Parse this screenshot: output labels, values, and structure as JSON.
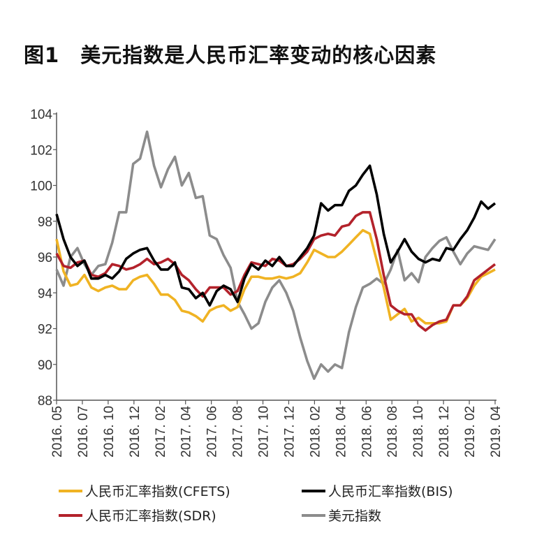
{
  "title": {
    "figure_no": "图1",
    "text": "美元指数是人民币汇率变动的核心因素"
  },
  "chart_data": {
    "type": "line",
    "title": "美元指数是人民币汇率变动的核心因素",
    "xlabel": "",
    "ylabel": "",
    "ylim": [
      88,
      104
    ],
    "yticks": [
      88,
      90,
      92,
      94,
      96,
      98,
      100,
      102,
      104
    ],
    "x_tick_labels": [
      "2016. 05",
      "2016. 07",
      "2016. 10",
      "2016. 12",
      "2017. 02",
      "2017. 04",
      "2017. 06",
      "2017. 08",
      "2017. 10",
      "2017. 12",
      "2018. 02",
      "2018. 04",
      "2018. 06",
      "2018. 08",
      "2018. 10",
      "2018. 12",
      "2019. 02",
      "2019. 04"
    ],
    "x_range": [
      "2016. 05",
      "2019. 04"
    ],
    "grid": false,
    "legend_placement": "bottom",
    "series": [
      {
        "name": "人民币汇率指数(CFETS)",
        "color": "#f0b323",
        "values": [
          97,
          95.2,
          94.4,
          94.5,
          95,
          94.3,
          94.1,
          94.3,
          94.4,
          94.2,
          94.2,
          94.7,
          94.9,
          95,
          94.5,
          93.9,
          93.9,
          93.6,
          93,
          92.9,
          92.7,
          92.4,
          93,
          93.2,
          93.3,
          93,
          93.2,
          94.2,
          94.9,
          94.9,
          94.8,
          94.8,
          94.9,
          94.8,
          94.9,
          95.1,
          95.7,
          96.4,
          96.2,
          96,
          96,
          96.3,
          96.7,
          97.1,
          97.5,
          97.3,
          95.8,
          94.3,
          92.5,
          92.8,
          93.1,
          92.4,
          92.6,
          92.3,
          92.3,
          92.3,
          92.4,
          93.3,
          93.3,
          93.7,
          94.4,
          94.9,
          95.1,
          95.3
        ]
      },
      {
        "name": "人民币汇率指数(BIS)",
        "color": "#000000",
        "values": [
          98.4,
          97,
          96,
          95.5,
          95.8,
          94.8,
          94.8,
          95,
          94.8,
          95.2,
          95.9,
          96.2,
          96.4,
          96.5,
          95.8,
          95.3,
          95.3,
          95.7,
          94.3,
          94.2,
          93.7,
          94,
          93.3,
          94.1,
          94.4,
          94.2,
          93.5,
          94.8,
          95.6,
          95.3,
          95.8,
          95.5,
          96,
          95.5,
          95.5,
          96,
          96.5,
          97.2,
          99,
          98.6,
          98.9,
          98.9,
          99.7,
          100,
          100.6,
          101.1,
          99.5,
          97.3,
          95.7,
          96.3,
          97,
          96.3,
          95.9,
          95.7,
          95.9,
          95.8,
          96.5,
          96.4,
          97,
          97.5,
          98.2,
          99.1,
          98.7,
          99
        ]
      },
      {
        "name": "人民币汇率指数(SDR)",
        "color": "#b3222b",
        "values": [
          96.2,
          95.5,
          95.4,
          95.7,
          95.8,
          95,
          94.9,
          95.1,
          95.6,
          95.5,
          95.3,
          95.4,
          95.6,
          95.9,
          95.6,
          95.7,
          95.9,
          95.6,
          95,
          94.7,
          94.2,
          93.8,
          94.3,
          94.3,
          94.3,
          93.9,
          94.1,
          95,
          95.7,
          95.6,
          95.5,
          95.9,
          95.8,
          95.5,
          95.6,
          95.9,
          96.3,
          97,
          97.2,
          97.3,
          97.2,
          97.7,
          97.8,
          98.3,
          98.5,
          98.5,
          97,
          95,
          93.3,
          93,
          92.8,
          92.8,
          92.2,
          91.9,
          92.2,
          92.4,
          92.5,
          93.3,
          93.3,
          93.8,
          94.7,
          95,
          95.3,
          95.6
        ]
      },
      {
        "name": "美元指数",
        "color": "#8c8c8c",
        "values": [
          95.3,
          94.4,
          96,
          96.5,
          95.6,
          95,
          95.5,
          95.6,
          96.8,
          98.5,
          98.5,
          101.2,
          101.5,
          103,
          101.1,
          99.9,
          100.9,
          101.6,
          100,
          100.7,
          99.3,
          99.4,
          97.2,
          97,
          96.1,
          95.4,
          93.5,
          92.8,
          92,
          92.3,
          93.5,
          94.3,
          94.7,
          94,
          93,
          91.5,
          90.2,
          89.2,
          90,
          89.6,
          90,
          89.8,
          91.8,
          93.2,
          94.3,
          94.5,
          94.8,
          94.5,
          95.3,
          96.4,
          94.7,
          95.1,
          94.6,
          96,
          96.5,
          96.9,
          97.1,
          96.3,
          95.6,
          96.2,
          96.6,
          96.5,
          96.4,
          97
        ]
      }
    ]
  }
}
